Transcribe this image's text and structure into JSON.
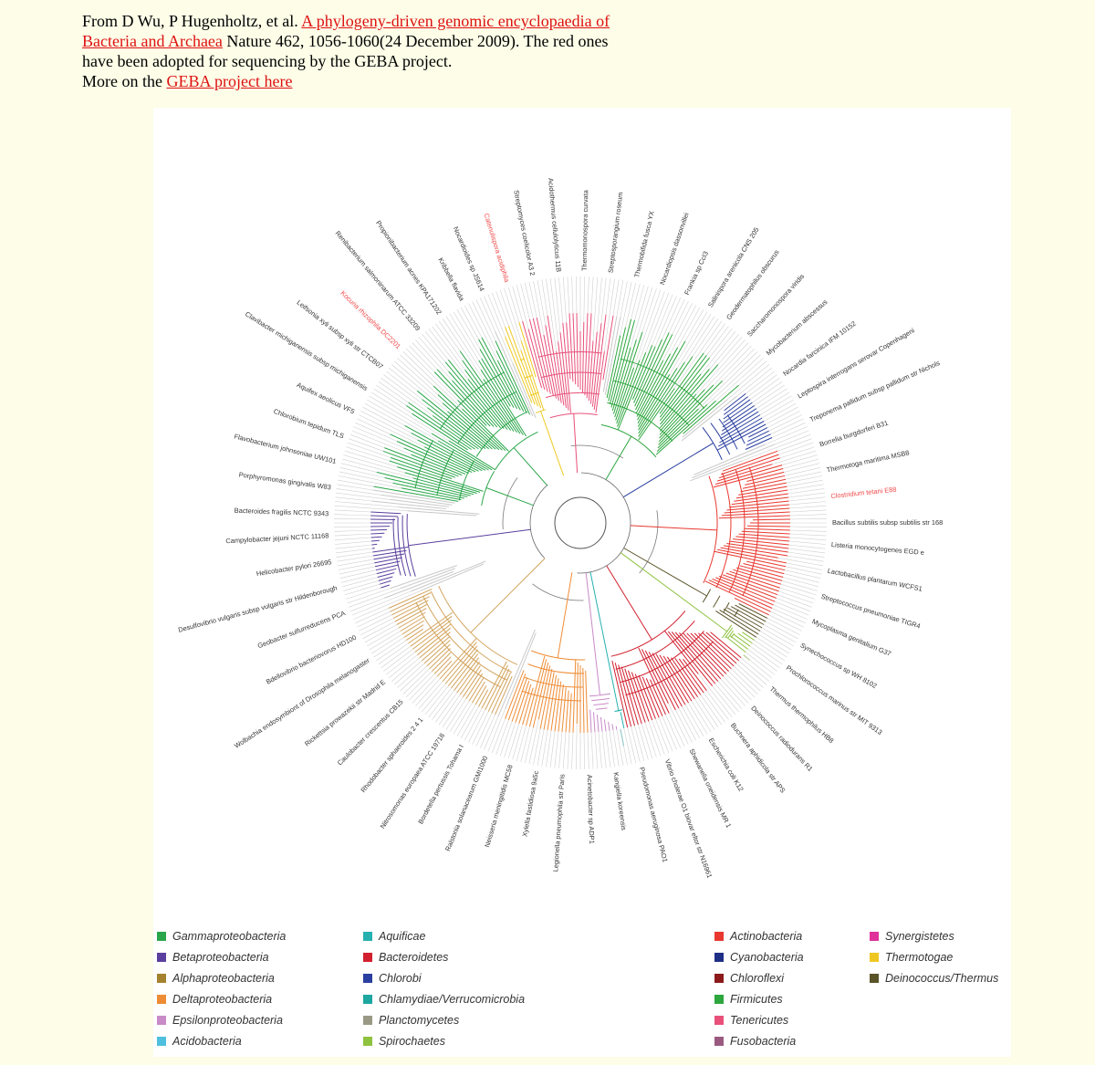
{
  "caption": {
    "line1_pre": "From D Wu, P Hugenholtz, et al. ",
    "paper_link": "A phylogeny-driven genomic encyclopaedia of Bacteria and Archaea",
    "line1_post": " Nature 462, 1056-1060(24 December 2009). The red ones have been adopted for sequencing by the GEBA project.",
    "line2_pre": "More on the ",
    "project_link": "GEBA project here"
  },
  "colors": {
    "geba_highlight": "#f04a4a",
    "species_label": "#333333",
    "link": "#dd1111",
    "background": "#fdfde8"
  },
  "legend": {
    "columns": [
      [
        {
          "label": "Gammaproteobacteria",
          "color": "#2aa64a"
        },
        {
          "label": "Betaproteobacteria",
          "color": "#5b3f9e"
        },
        {
          "label": "Alphaproteobacteria",
          "color": "#a5832e"
        },
        {
          "label": "Deltaproteobacteria",
          "color": "#ee8c35"
        },
        {
          "label": "Epsilonproteobacteria",
          "color": "#c98ac8"
        },
        {
          "label": "Acidobacteria",
          "color": "#4fbfdf"
        }
      ],
      [
        {
          "label": "Aquificae",
          "color": "#26b0b0"
        },
        {
          "label": "Bacteroidetes",
          "color": "#d2202f"
        },
        {
          "label": "Chlorobi",
          "color": "#2a3fa0"
        },
        {
          "label": "Chlamydiae/Verrucomicrobia",
          "color": "#1ea6a0"
        },
        {
          "label": "Planctomycetes",
          "color": "#999986"
        },
        {
          "label": "Spirochaetes",
          "color": "#8fc23f"
        }
      ],
      [
        {
          "label": "Actinobacteria",
          "color": "#e8382f"
        },
        {
          "label": "Cyanobacteria",
          "color": "#1f2f86"
        },
        {
          "label": "Chloroflexi",
          "color": "#8c1a1a"
        },
        {
          "label": "Firmicutes",
          "color": "#2ca63d"
        },
        {
          "label": "Tenericutes",
          "color": "#e8507a"
        },
        {
          "label": "Fusobacteria",
          "color": "#9a5a80"
        }
      ],
      [
        {
          "label": "Synergistetes",
          "color": "#e0309a"
        },
        {
          "label": "Thermotogae",
          "color": "#eec820"
        },
        {
          "label": "Deinococcus/Thermus",
          "color": "#5a5328"
        }
      ]
    ]
  },
  "tree": {
    "clades": [
      {
        "name": "Actinobacteria",
        "color": "#e8382f"
      },
      {
        "name": "Cyanobacteria",
        "color": "#2a3fa0"
      },
      {
        "name": "Deinococcus/Thermus",
        "color": "#5a5328"
      },
      {
        "name": "Firmicutes",
        "color": "#2ca63d"
      },
      {
        "name": "Tenericutes",
        "color": "#e8507a"
      },
      {
        "name": "Thermotogae",
        "color": "#eec820"
      },
      {
        "name": "Gammaproteobacteria",
        "color": "#2aa64a"
      },
      {
        "name": "Betaproteobacteria",
        "color": "#5b3f9e"
      },
      {
        "name": "Alphaproteobacteria",
        "color": "#d3a35c"
      },
      {
        "name": "Deltaproteobacteria",
        "color": "#ee8c35"
      },
      {
        "name": "Epsilonproteobacteria",
        "color": "#c98ac8"
      },
      {
        "name": "Bacteroidetes",
        "color": "#d2202f"
      },
      {
        "name": "Spirochaetes",
        "color": "#8fc23f"
      },
      {
        "name": "Aquificae",
        "color": "#26b0b0"
      }
    ],
    "labels": [
      "Clavibacter michiganensis subsp michiganensis",
      "Leifsonia xyli subsp xyli str CTCB07",
      "Kocuria rhizophila DC2201",
      "Renibacterium salmoninarum ATCC 33209",
      "Propionibacterium acnes KPA171202",
      "Kribbella flavida",
      "Nocardioides sp JS614",
      "Catenulispora acidiphila",
      "Streptomyces coelicolor A3 2",
      "Acidothermus cellulolyticus 11B",
      "Thermomonospora curvata",
      "Streptosporangium roseum",
      "Thermobifida fusca YX",
      "Nocardiopsis dassonvillei",
      "Frankia sp CcI3",
      "Salinispora arenicola CNS 205",
      "Geodermatophilus obscurus",
      "Saccharomonospora viridis",
      "Mycobacterium abscessus",
      "Nocardia farcinica IFM 10152",
      "Leptospira interrogans serovar Copenhageni",
      "Treponema pallidum subsp pallidum str Nichols",
      "Borrelia burgdorferi B31",
      "Thermotoga maritima MSB8",
      "Clostridium tetani E88",
      "Bacillus subtilis subsp subtilis str 168",
      "Listeria monocytogenes EGD e",
      "Lactobacillus plantarum WCFS1",
      "Streptococcus pneumoniae TIGR4",
      "Mycoplasma genitalium G37",
      "Synechococcus sp WH 8102",
      "Prochlorococcus marinus str MIT 9313",
      "Thermus thermophilus HB8",
      "Deinococcus radiodurans R1",
      "Buchnera aphidicola str APS",
      "Escherichia coli K12",
      "Shewanella oneidensis MR 1",
      "Vibrio cholerae O1 biovar eltor str N16961",
      "Pseudomonas aeruginosa PAO1",
      "Kangiella koreensis",
      "Acinetobacter sp ADP1",
      "Legionella pneumophila str Paris",
      "Xylella fastidiosa 9a5c",
      "Neisseria meningitidis MC58",
      "Ralstonia solanacearum GMI1000",
      "Bordetella pertussis Tohama I",
      "Nitrosomonas europaea ATCC 19718",
      "Rhodobacter sphaeroides 2 4 1",
      "Caulobacter crescentus CB15",
      "Rickettsia prowazekii str Madrid E",
      "Wolbachia endosymbiont of Drosophila melanogaster",
      "Bdellovibrio bacteriovorus HD100",
      "Geobacter sulfurreducens PCA",
      "Desulfovibrio vulgaris subsp vulgaris str Hildenborough",
      "Helicobacter pylori 26695",
      "Campylobacter jejuni NCTC 11168",
      "Bacteroides fragilis NCTC 9343",
      "Porphyromonas gingivalis W83",
      "Flavobacterium johnsoniae UW101",
      "Chlorobium tepidum TLS",
      "Aquifex aeolicus VF5"
    ]
  }
}
